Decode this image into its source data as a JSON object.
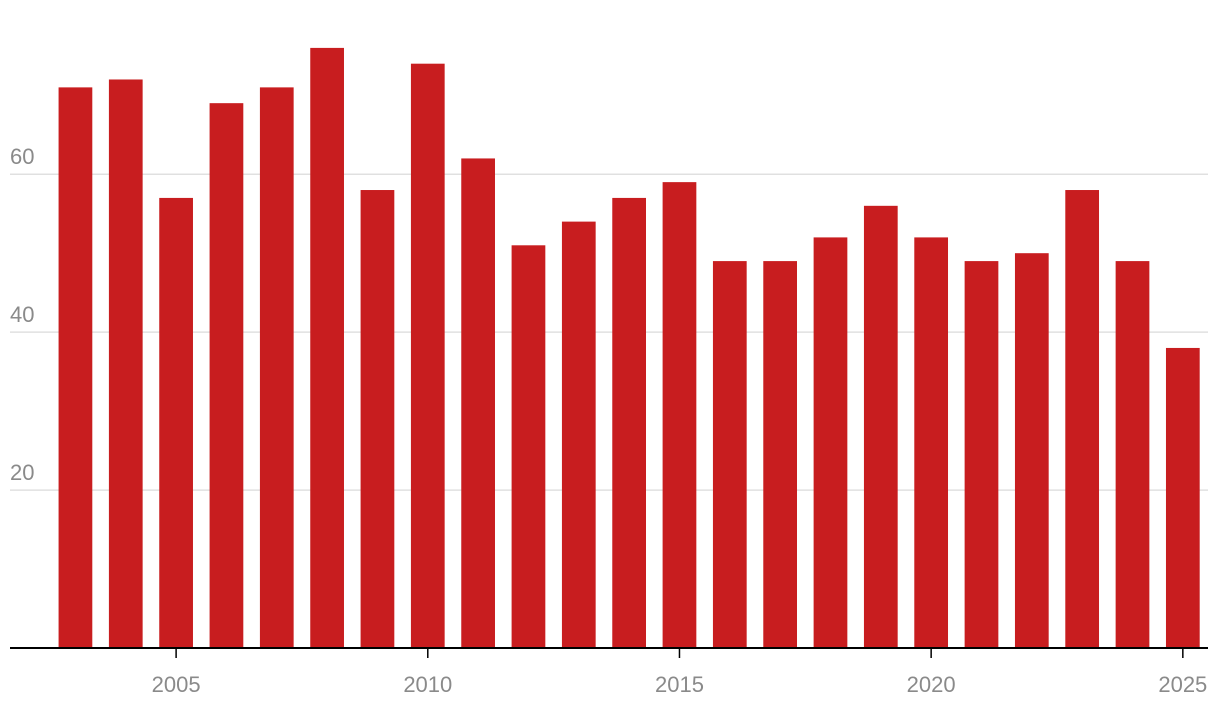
{
  "chart_data": {
    "type": "bar",
    "x": [
      2003,
      2004,
      2005,
      2006,
      2007,
      2008,
      2009,
      2010,
      2011,
      2012,
      2013,
      2014,
      2015,
      2016,
      2017,
      2018,
      2019,
      2020,
      2021,
      2022,
      2023,
      2024,
      2025
    ],
    "values": [
      71,
      72,
      57,
      69,
      71,
      76,
      58,
      74,
      62,
      51,
      54,
      57,
      59,
      49,
      49,
      52,
      56,
      52,
      49,
      50,
      58,
      49,
      38
    ],
    "color": "#c81d1f",
    "xlim": [
      2001.7,
      2025.5
    ],
    "xticks": [
      2005,
      2010,
      2015,
      2020,
      2025
    ],
    "ylim": [
      0,
      77
    ],
    "yticks": [
      20,
      40,
      60
    ],
    "grid": true
  }
}
